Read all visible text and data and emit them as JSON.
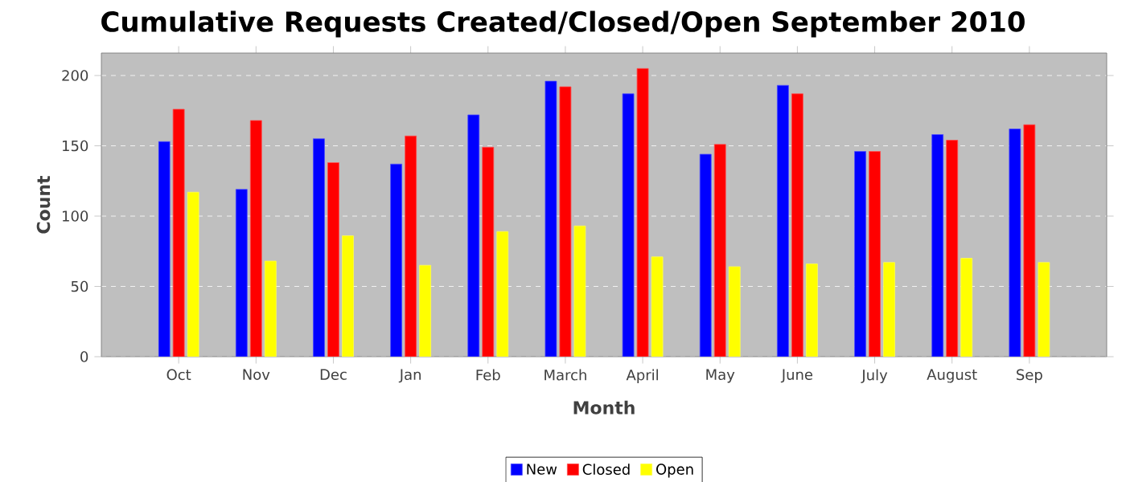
{
  "chart_data": {
    "type": "bar",
    "title": "Cumulative Requests Created/Closed/Open September 2010",
    "xlabel": "Month",
    "ylabel": "Count",
    "categories": [
      "Oct",
      "Nov",
      "Dec",
      "Jan",
      "Feb",
      "March",
      "April",
      "May",
      "June",
      "July",
      "August",
      "Sep"
    ],
    "series": [
      {
        "name": "New",
        "color": "#0000ff",
        "values": [
          153,
          119,
          155,
          137,
          172,
          196,
          187,
          144,
          193,
          146,
          158,
          162
        ]
      },
      {
        "name": "Closed",
        "color": "#ff0000",
        "values": [
          176,
          168,
          138,
          157,
          149,
          192,
          205,
          151,
          187,
          146,
          154,
          165
        ]
      },
      {
        "name": "Open",
        "color": "#ffff00",
        "values": [
          117,
          68,
          86,
          65,
          89,
          93,
          71,
          64,
          66,
          67,
          70,
          67
        ]
      }
    ],
    "ylim": [
      0,
      216
    ],
    "yticks": [
      0,
      50,
      100,
      150,
      200
    ],
    "grid": "y",
    "legend": "bottom"
  }
}
